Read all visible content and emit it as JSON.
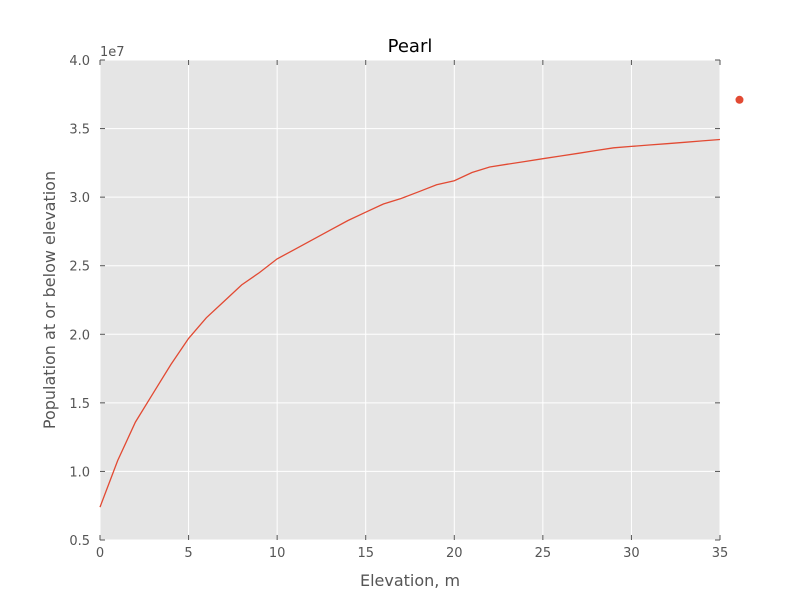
{
  "chart_data": {
    "type": "line",
    "title": "Pearl",
    "xlabel": "Elevation, m",
    "ylabel": "Population at or below elevation",
    "offset_label": "1e7",
    "xlim": [
      0,
      35
    ],
    "ylim": [
      0.5,
      4.0
    ],
    "x_ticks": [
      "0",
      "5",
      "10",
      "15",
      "20",
      "25",
      "30",
      "35"
    ],
    "y_ticks": [
      "0.5",
      "1.0",
      "1.5",
      "2.0",
      "2.5",
      "3.0",
      "3.5",
      "4.0"
    ],
    "grid": true,
    "colors": {
      "plot_background": "#e5e5e5",
      "grid": "#ffffff",
      "line": "#e24a33",
      "axis_text": "#555555",
      "title": "#000000"
    },
    "series": [
      {
        "name": "",
        "x": [
          0,
          1,
          2,
          3,
          4,
          5,
          6,
          7,
          8,
          9,
          10,
          11,
          12,
          13,
          14,
          15,
          16,
          17,
          18,
          19,
          20,
          21,
          22,
          23,
          24,
          25,
          26,
          27,
          28,
          29,
          30,
          31,
          32,
          33,
          34,
          35
        ],
        "y": [
          0.74,
          1.08,
          1.36,
          1.57,
          1.78,
          1.97,
          2.12,
          2.24,
          2.36,
          2.45,
          2.55,
          2.62,
          2.69,
          2.76,
          2.83,
          2.89,
          2.95,
          2.99,
          3.04,
          3.09,
          3.12,
          3.18,
          3.22,
          3.24,
          3.26,
          3.28,
          3.3,
          3.32,
          3.34,
          3.36,
          3.37,
          3.38,
          3.39,
          3.4,
          3.41,
          3.42
        ]
      }
    ],
    "outlier_point": {
      "x": 36.1,
      "y": 3.71
    }
  }
}
